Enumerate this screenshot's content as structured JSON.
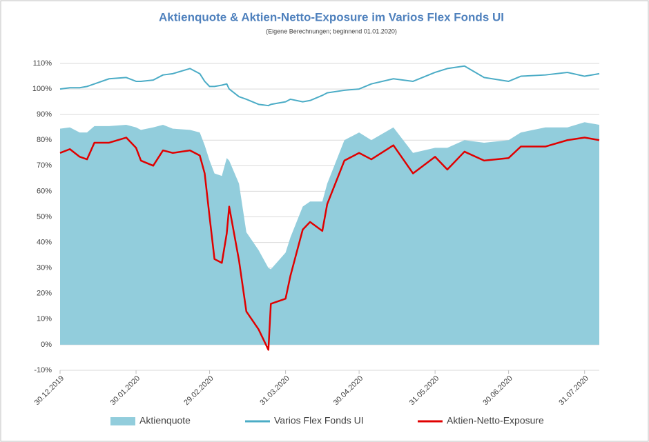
{
  "chart_data": {
    "type": "line",
    "title": "Aktienquote & Aktien-Netto-Exposure im Varios Flex Fonds UI",
    "subtitle": "(Eigene Berechnungen; beginnend 01.01.2020)",
    "x": [
      "30.12.2019",
      "03.01.2020",
      "07.01.2020",
      "10.01.2020",
      "13.01.2020",
      "19.01.2020",
      "26.01.2020",
      "30.01.2020",
      "01.02.2020",
      "06.02.2020",
      "10.02.2020",
      "14.02.2020",
      "21.02.2020",
      "25.02.2020",
      "27.02.2020",
      "29.02.2020",
      "02.03.2020",
      "05.03.2020",
      "07.03.2020",
      "08.03.2020",
      "12.03.2020",
      "15.03.2020",
      "20.03.2020",
      "24.03.2020",
      "25.03.2020",
      "31.03.2020",
      "02.04.2020",
      "07.04.2020",
      "10.04.2020",
      "15.04.2020",
      "17.04.2020",
      "24.04.2020",
      "30.04.2020",
      "05.05.2020",
      "14.05.2020",
      "22.05.2020",
      "31.05.2020",
      "05.06.2020",
      "12.06.2020",
      "20.06.2020",
      "30.06.2020",
      "05.07.2020",
      "15.07.2020",
      "24.07.2020",
      "31.07.2020",
      "06.08.2020"
    ],
    "series": [
      {
        "name": "Aktienquote",
        "type": "area",
        "color": "#92cddc",
        "values": [
          84.5,
          85,
          83,
          83,
          85.5,
          85.5,
          86,
          85,
          84,
          85,
          86,
          84.5,
          84,
          83,
          78,
          72,
          67,
          66,
          73,
          72,
          63,
          44,
          37,
          30,
          29.5,
          36,
          42,
          54,
          56,
          56,
          63,
          80,
          83,
          80,
          85,
          75,
          77,
          77,
          80,
          79,
          80,
          83,
          85,
          85,
          87,
          86
        ]
      },
      {
        "name": "Varios Flex Fonds UI",
        "type": "line",
        "color": "#4bacc6",
        "values": [
          100,
          100.5,
          100.5,
          101,
          102,
          104,
          104.5,
          103,
          103,
          103.5,
          105.5,
          106,
          108,
          106,
          103,
          101,
          101,
          101.5,
          102,
          100,
          97,
          96,
          94,
          93.5,
          94,
          95,
          96,
          95,
          95.5,
          97.5,
          98.5,
          99.5,
          100,
          102,
          104,
          103,
          106.5,
          108,
          109,
          104.5,
          103,
          105,
          105.5,
          106.5,
          105,
          106
        ]
      },
      {
        "name": "Aktien-Netto-Exposure",
        "type": "line",
        "color": "#e00000",
        "values": [
          75,
          76.5,
          73.5,
          72.5,
          79,
          79,
          81,
          77,
          72,
          70,
          76,
          75,
          76,
          74,
          67,
          50,
          33.5,
          32,
          43.5,
          54,
          33,
          13,
          6,
          -2,
          16,
          18,
          27,
          45,
          48,
          44.5,
          55,
          72,
          75,
          72.5,
          78,
          67,
          73.5,
          68.5,
          75.5,
          72,
          73,
          77.5,
          77.5,
          80,
          81,
          80
        ]
      }
    ],
    "xlim": [
      "30.12.2019",
      "06.08.2020"
    ],
    "xticks": [
      "30.12.2019",
      "30.01.2020",
      "29.02.2020",
      "31.03.2020",
      "30.04.2020",
      "31.05.2020",
      "30.06.2020",
      "31.07.2020"
    ],
    "ylim": [
      -10,
      110
    ],
    "yticks": [
      {
        "value": -10,
        "label": "-10%"
      },
      {
        "value": 0,
        "label": "0%"
      },
      {
        "value": 10,
        "label": "10%"
      },
      {
        "value": 20,
        "label": "20%"
      },
      {
        "value": 30,
        "label": "30%"
      },
      {
        "value": 40,
        "label": "40%"
      },
      {
        "value": 50,
        "label": "50%"
      },
      {
        "value": 60,
        "label": "60%"
      },
      {
        "value": 70,
        "label": "70%"
      },
      {
        "value": 80,
        "label": "80%"
      },
      {
        "value": 90,
        "label": "90%"
      },
      {
        "value": 100,
        "label": "100%"
      },
      {
        "value": 110,
        "label": "110%"
      }
    ],
    "grid": true,
    "legend": "bottom"
  }
}
